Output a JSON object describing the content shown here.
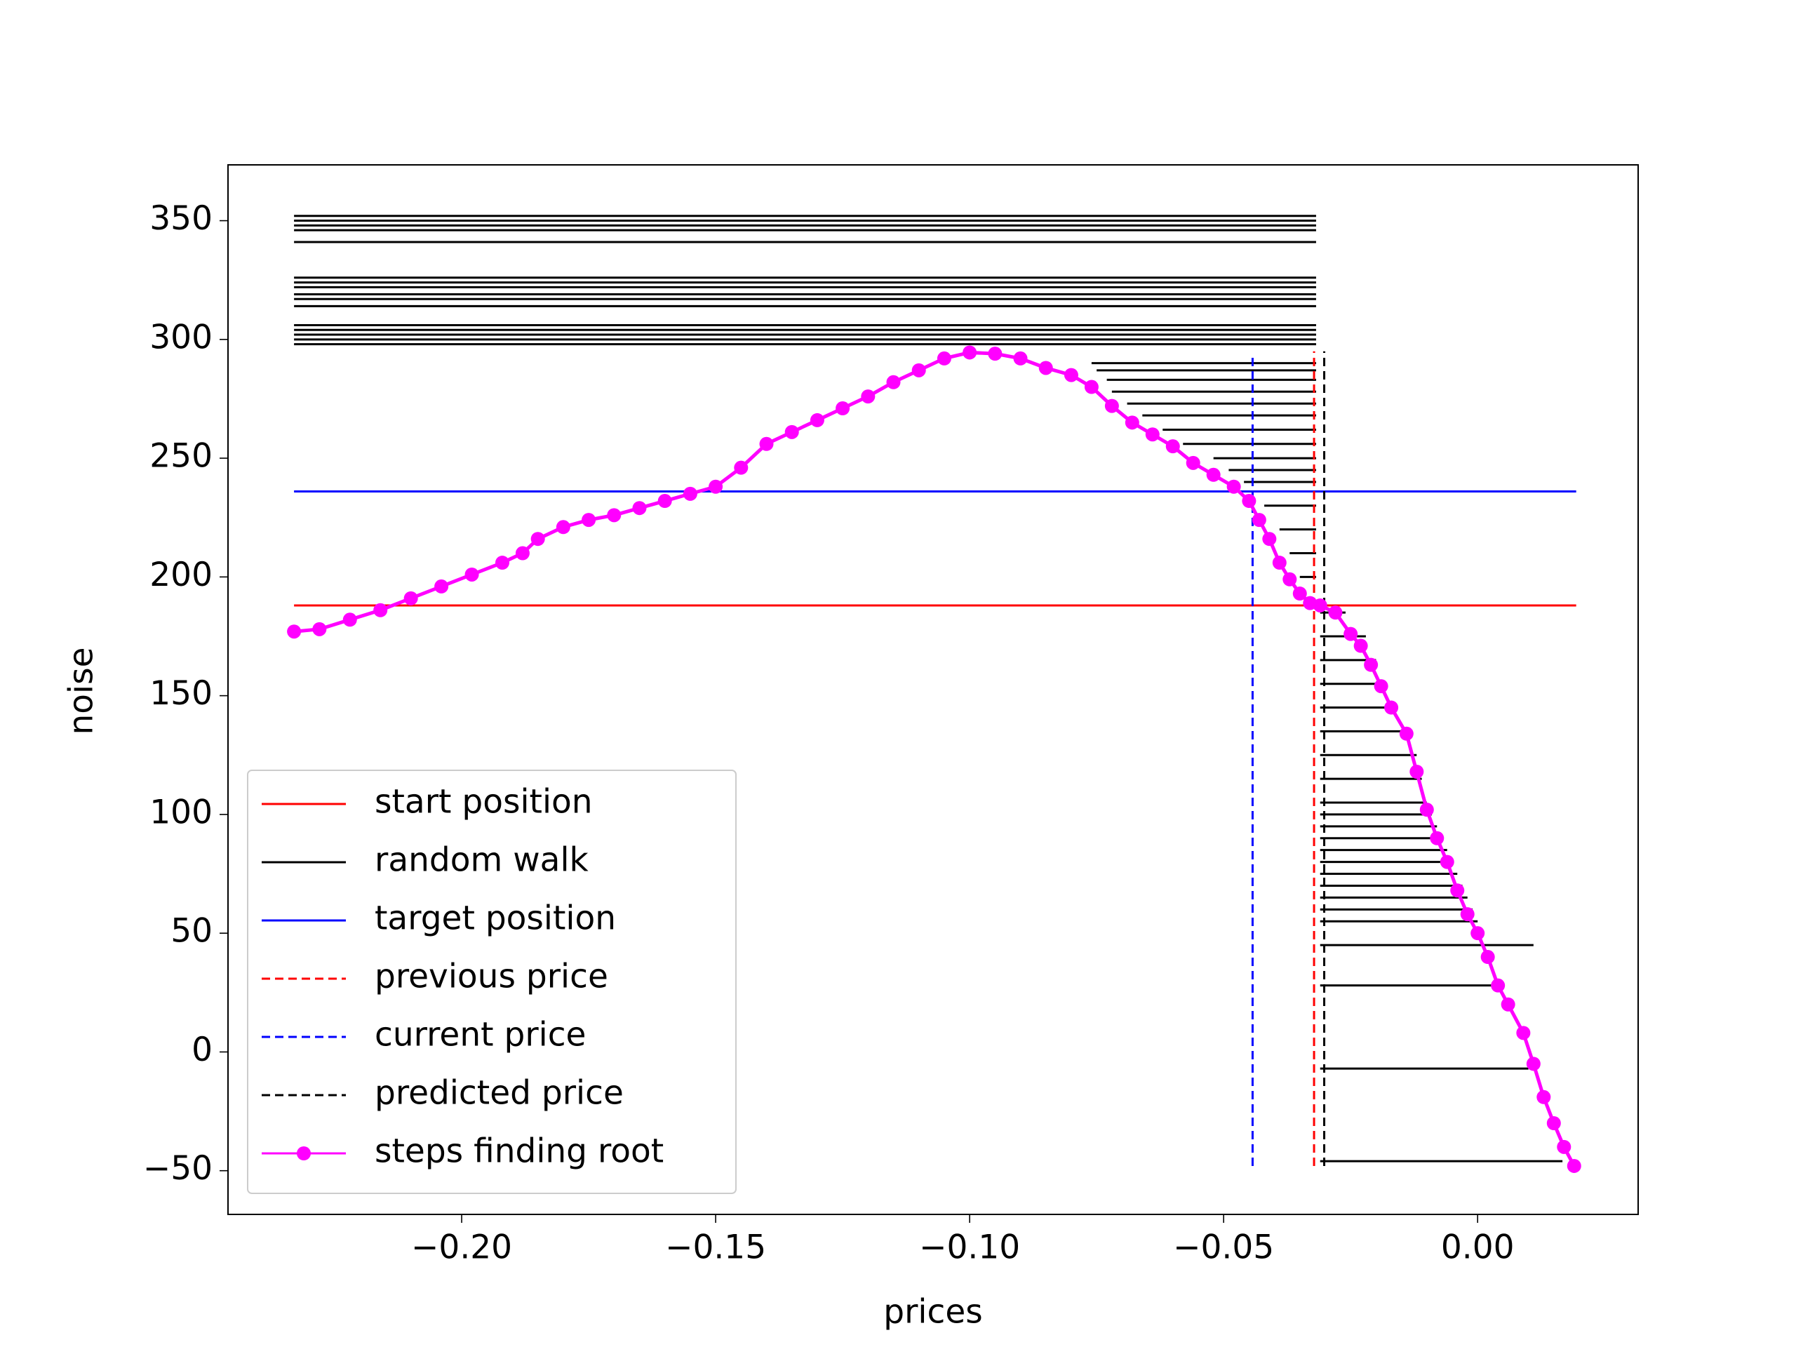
{
  "chart_data": {
    "type": "line",
    "xlabel": "prices",
    "ylabel": "noise",
    "xlim": [
      -0.246,
      0.0316
    ],
    "ylim": [
      -68.4,
      373.5
    ],
    "xticks": [
      {
        "value": -0.2,
        "label": "−0.20"
      },
      {
        "value": -0.15,
        "label": "−0.15"
      },
      {
        "value": -0.1,
        "label": "−0.10"
      },
      {
        "value": -0.05,
        "label": "−0.05"
      },
      {
        "value": 0,
        "label": "0.00"
      }
    ],
    "yticks": [
      {
        "value": -50,
        "label": "−50"
      },
      0,
      50,
      100,
      150,
      200,
      250,
      300,
      350
    ],
    "legend": "lower left",
    "series": [
      {
        "name": "start position",
        "color": "#ff0000",
        "dashed": false,
        "x": [
          -0.233,
          0.0194
        ],
        "values": [
          188,
          188
        ]
      },
      {
        "name": "random walk",
        "color": "#000000",
        "dashed": false,
        "values": [
          352,
          350,
          348,
          346,
          341,
          326,
          324,
          322,
          319,
          317,
          314,
          306,
          304,
          302,
          300,
          298,
          290,
          287,
          283,
          278,
          273,
          268,
          262,
          256,
          250,
          245,
          240,
          230,
          220,
          210,
          200,
          185,
          175,
          165,
          155,
          145,
          135,
          125,
          115,
          105,
          100,
          95,
          90,
          85,
          80,
          75,
          70,
          65,
          60,
          55,
          45,
          28,
          -7,
          -46
        ],
        "x_start": [
          -0.233,
          -0.233,
          -0.233,
          -0.233,
          -0.233,
          -0.233,
          -0.233,
          -0.233,
          -0.233,
          -0.233,
          -0.233,
          -0.233,
          -0.233,
          -0.233,
          -0.233,
          -0.233,
          -0.076,
          -0.075,
          -0.073,
          -0.072,
          -0.069,
          -0.066,
          -0.062,
          -0.058,
          -0.052,
          -0.049,
          -0.046,
          -0.042,
          -0.039,
          -0.037,
          -0.035,
          -0.031,
          -0.031,
          -0.031,
          -0.031,
          -0.031,
          -0.031,
          -0.031,
          -0.031,
          -0.031,
          -0.031,
          -0.031,
          -0.031,
          -0.031,
          -0.031,
          -0.031,
          -0.031,
          -0.031,
          -0.031,
          -0.031,
          -0.031,
          -0.031,
          -0.031,
          -0.031
        ],
        "x_end": [
          -0.0318,
          -0.0318,
          -0.0318,
          -0.0318,
          -0.0318,
          -0.0318,
          -0.0318,
          -0.0318,
          -0.0318,
          -0.0318,
          -0.0318,
          -0.0318,
          -0.0318,
          -0.0318,
          -0.0318,
          -0.0318,
          -0.0318,
          -0.0318,
          -0.0318,
          -0.0318,
          -0.0318,
          -0.0318,
          -0.0318,
          -0.0318,
          -0.0318,
          -0.0318,
          -0.0318,
          -0.0318,
          -0.0318,
          -0.0318,
          -0.0318,
          -0.026,
          -0.022,
          -0.02,
          -0.018,
          -0.016,
          -0.014,
          -0.012,
          -0.011,
          -0.01,
          -0.009,
          -0.008,
          -0.007,
          -0.006,
          -0.005,
          -0.004,
          -0.003,
          -0.002,
          -0.001,
          0.0,
          0.011,
          0.003,
          0.01,
          0.0167
        ]
      },
      {
        "name": "target position",
        "color": "#0000ff",
        "dashed": false,
        "x": [
          -0.233,
          0.0194
        ],
        "values": [
          236,
          236
        ]
      },
      {
        "name": "previous price",
        "color": "#ff0000",
        "dashed": true,
        "x": [
          -0.0322,
          -0.0322
        ],
        "values": [
          -48,
          295
        ]
      },
      {
        "name": "current price",
        "color": "#0000ff",
        "dashed": true,
        "x": [
          -0.0443,
          -0.0443
        ],
        "values": [
          -48,
          293
        ]
      },
      {
        "name": "predicted price",
        "color": "#000000",
        "dashed": true,
        "x": [
          -0.0302,
          -0.0302
        ],
        "values": [
          -48,
          295
        ]
      },
      {
        "name": "steps finding root",
        "color": "#ff00ff",
        "dashed": false,
        "markers": true,
        "x": [
          -0.233,
          -0.228,
          -0.222,
          -0.216,
          -0.21,
          -0.204,
          -0.198,
          -0.192,
          -0.188,
          -0.185,
          -0.18,
          -0.175,
          -0.17,
          -0.165,
          -0.16,
          -0.155,
          -0.15,
          -0.145,
          -0.14,
          -0.135,
          -0.13,
          -0.125,
          -0.12,
          -0.115,
          -0.11,
          -0.105,
          -0.1,
          -0.095,
          -0.09,
          -0.085,
          -0.08,
          -0.076,
          -0.072,
          -0.068,
          -0.064,
          -0.06,
          -0.056,
          -0.052,
          -0.048,
          -0.045,
          -0.043,
          -0.041,
          -0.039,
          -0.037,
          -0.035,
          -0.033,
          -0.031,
          -0.028,
          -0.025,
          -0.023,
          -0.021,
          -0.019,
          -0.017,
          -0.014,
          -0.012,
          -0.01,
          -0.008,
          -0.006,
          -0.004,
          -0.002,
          0.0,
          0.002,
          0.004,
          0.006,
          0.009,
          0.011,
          0.013,
          0.015,
          0.017,
          0.019
        ],
        "values": [
          177,
          178,
          182,
          186,
          191,
          196,
          201,
          206,
          210,
          216,
          221,
          224,
          226,
          229,
          232,
          235,
          238,
          246,
          256,
          261,
          266,
          271,
          276,
          282,
          287,
          292,
          294.5,
          294,
          292,
          288,
          285,
          280,
          272,
          265,
          260,
          255,
          248,
          243,
          238,
          232,
          224,
          216,
          206,
          199,
          193,
          189,
          188,
          185,
          176,
          171,
          163,
          154,
          145,
          134,
          118,
          102,
          90,
          80,
          68,
          58,
          50,
          40,
          28,
          20,
          8,
          -5,
          -19,
          -30,
          -40,
          -48
        ]
      }
    ]
  }
}
